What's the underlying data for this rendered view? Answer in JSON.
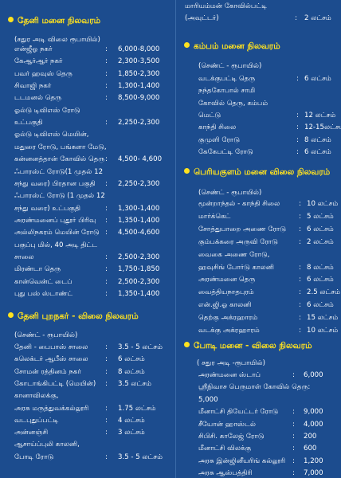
{
  "left": {
    "heading1": "தேனி மனை நிலவரம்",
    "unit1": "(சதுர அடி விலை ரூபாயில்)",
    "rows1": [
      {
        "label": "என்ஜீஓ நகர்",
        "value": "6,000-8,000"
      },
      {
        "label": "கேஆர்ஆர் நகர்",
        "value": "2,300-3,500"
      },
      {
        "label": "பவர் ஹவுஸ் தெரு",
        "value": "1,850-2,300"
      },
      {
        "label": "சிவாஜி நகர்",
        "value": "1,300-1,400"
      },
      {
        "label": "டடமனல் தெரு",
        "value": "8,500-9,000"
      },
      {
        "label": "ஓல்டு டிவிஎஸ் ரோடு",
        "value": ""
      },
      {
        "label": "உட்பகுதி",
        "value": "2,250-2,300"
      },
      {
        "label": "ஓல்டு டிவிஎஸ் மெயின்,",
        "value": ""
      },
      {
        "label": "மதுரை ரோடு, பங்களா மேடு,",
        "value": ""
      },
      {
        "label": "கன்னனத்தான் கோவில் தெரு",
        "value": "4,500-  4,600"
      },
      {
        "label": "ஃபாரஸ்ட் ரோடு(1 முதல் 12",
        "value": ""
      },
      {
        "label": "சந்து வரை) பிரதான பகுதி",
        "value": "2,250-2,300"
      },
      {
        "label": "ஃபாரஸ்ட் ரோடு (1 முதல் 12",
        "value": ""
      },
      {
        "label": "சந்து வரை) உட்பகுதி",
        "value": "1,300-1,400"
      },
      {
        "label": "அரண்மனைப் புதூர் பிரிவு",
        "value": "1,350-1,400"
      },
      {
        "label": "அல்லிநகரம் மெயின் ரோடு",
        "value": "4,500-4,600"
      },
      {
        "label": "பகுப்பு மில், 40 அடி திட்ட",
        "value": ""
      },
      {
        "label": "சாலை",
        "value": "2,500-2,300"
      },
      {
        "label": "மிரண்டா தெரு",
        "value": "1,750-1,850"
      },
      {
        "label": "கான்வென்ட் டைப்",
        "value": "2,500-2,300"
      },
      {
        "label": "புது பஸ் ஸ்டாண்ட்",
        "value": "1,350-1,400"
      }
    ],
    "heading2": "தேனி புறநகர் - விலை நிலவரம்",
    "unit2": "(செண்ட் - ரூபாயில்)",
    "rows2": [
      {
        "label": "தேனி - பைபாஸ் சாலை",
        "value": "3.5 - 5 லட்சம்"
      },
      {
        "label": "கலெக்டர் ஆபீஸ் சாலை",
        "value": "6 லட்சம்"
      },
      {
        "label": "சோமன் ரத்தினம் நகர்",
        "value": "8 லட்சம்"
      },
      {
        "label": "கோடாங்கிபட்டி (மெயின்)",
        "value": "3.5 லட்சம்"
      },
      {
        "label": "கானாவிலக்கு,",
        "value": ""
      },
      {
        "label": "அரசு மருத்துவக்கல்லூரி",
        "value": "1.75 லட்சம்"
      },
      {
        "label": "வடபுதுப்பட்டி",
        "value": "4 லட்சம்"
      },
      {
        "label": "அன்னஞ்சி",
        "value": "3 லட்சம்"
      },
      {
        "label": "ஆசாய்ப்புலி காலனி,",
        "value": ""
      },
      {
        "label": "போடி  ரோடு",
        "value": "3.5 - 5 லட்சம்"
      }
    ]
  },
  "right": {
    "top_rows": [
      {
        "label": "மாரியம்மன் கோவில்பட்டி",
        "value": ""
      },
      {
        "label": "(அவுட்டர்)",
        "value": "2 லட்சம்"
      }
    ],
    "heading1": "கம்பம் மனை நிலவரம்",
    "unit1": "(செண்ட் - ரூபாயில்)",
    "rows1": [
      {
        "label": "வடக்குபட்டி தெரு",
        "value": "6 லட்சம்"
      },
      {
        "label": "நந்தகோபால் சாமி",
        "value": ""
      },
      {
        "label": "கோவில் தெரு,  கம்பம்",
        "value": ""
      },
      {
        "label": "மெட்டு",
        "value": "12 லட்சம்"
      },
      {
        "label": "காந்தி சிலை",
        "value": "12-15லட்சம்"
      },
      {
        "label": "குமுளி ரோடு",
        "value": "8 லட்சம்"
      },
      {
        "label": "கேகேபட்டி ரோடு",
        "value": "6 லட்சம்"
      }
    ],
    "heading2": "பெரியகுளம் மனை விலை நிலவரம்",
    "unit2": "(செண்ட் - ரூபாயில்)",
    "rows2": [
      {
        "label": "மூன்றாந்தல் - காந்தி சிலை",
        "value": "10 லட்சம்"
      },
      {
        "label": "மார்க்கெட்",
        "value": "5 லட்சம்"
      },
      {
        "label": "சோத்துபாறை அணை ரோடு",
        "value": "6 லட்சம்"
      },
      {
        "label": "கும்பக்கரை அருவி ரோடு",
        "value": "2 லட்சம்"
      },
      {
        "label": "வைகை அணை ரோடு,",
        "value": ""
      },
      {
        "label": "ஹவுசிங் போர்டு காலனி",
        "value": "8 லட்சம்"
      },
      {
        "label": "அரண்மனை தெரு",
        "value": "6 லட்சம்"
      },
      {
        "label": "வைத்தியநாதபுரம்",
        "value": "2.5 லட்சம்"
      },
      {
        "label": "என்.ஜி.ஓ காலனி",
        "value": "6 லட்சம்"
      },
      {
        "label": "தெற்கு அக்ரஹாரம்",
        "value": "15 லட்சம்"
      },
      {
        "label": "வடக்கு அக்ரஹாரம்",
        "value": "10 லட்சம்"
      }
    ],
    "heading3": "போடி மனை - விலை நிலவரம்",
    "unit3": "( சதுர அடி -ரூபாயில்)",
    "rows3": [
      {
        "label": "அரண்மனை ஸ்டாப்",
        "value": "6,000"
      },
      {
        "label": "ஸ்ரீநிவாச பெருமாள் கோவில் தெரு:",
        "value": ""
      },
      {
        "label": "5,000",
        "value": ""
      },
      {
        "label": "மீனாட்சி தியேட்டர் ரோடு",
        "value": "9,000"
      },
      {
        "label": "சீயோன் ஹாஸ்டல்",
        "value": "4,000"
      },
      {
        "label": "சிபிசி. காலேஜ் ரோடு",
        "value": "200"
      },
      {
        "label": "மீனாட்சி விலக்கு",
        "value": "600"
      },
      {
        "label": "அரசு இன்ஜினீயரிங் கல்லூரி",
        "value": "1,200"
      },
      {
        "label": "அரசு ஆஸ்பத்திரி",
        "value": "7,000"
      }
    ]
  },
  "colors": {
    "background": "#1c4c8e",
    "heading": "#ffe21f",
    "text": "#ffffff"
  },
  "icons": {
    "bullet": "yellow-circle-bullet"
  }
}
